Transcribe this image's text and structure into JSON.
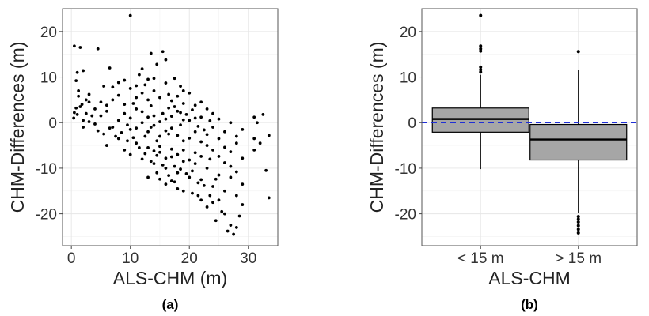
{
  "chart_data": [
    {
      "type": "scatter",
      "caption": "(a)",
      "xlabel": "ALS-CHM (m)",
      "ylabel": "CHM-Differences (m)",
      "xlim": [
        -1.5,
        35
      ],
      "ylim": [
        -27,
        25
      ],
      "xticks": [
        "0",
        "10",
        "20",
        "30"
      ],
      "yticks": [
        "20",
        "10",
        "0",
        "-10",
        "-20"
      ],
      "grid": true,
      "point_color": "#000000",
      "points": [
        [
          0.5,
          16.8
        ],
        [
          1.5,
          16.5
        ],
        [
          4.5,
          16.2
        ],
        [
          10,
          23.5
        ],
        [
          13.5,
          15.2
        ],
        [
          15.5,
          15.6
        ],
        [
          1,
          11
        ],
        [
          2,
          11.4
        ],
        [
          0.8,
          9.2
        ],
        [
          1.2,
          7
        ],
        [
          6.5,
          12
        ],
        [
          11.5,
          10.5
        ],
        [
          12,
          11.8
        ],
        [
          13,
          9.5
        ],
        [
          14.5,
          12.8
        ],
        [
          16,
          13.8
        ],
        [
          17.5,
          9.7
        ],
        [
          8,
          8.8
        ],
        [
          5.5,
          8
        ],
        [
          18.5,
          8
        ],
        [
          0.5,
          2.2
        ],
        [
          1.5,
          3.5
        ],
        [
          2.5,
          2
        ],
        [
          3.5,
          1.5
        ],
        [
          2,
          0.5
        ],
        [
          1,
          1.8
        ],
        [
          3,
          4.5
        ],
        [
          4,
          -0.3
        ],
        [
          5,
          1.5
        ],
        [
          6,
          2.5
        ],
        [
          7,
          -1
        ],
        [
          8,
          0.5
        ],
        [
          9,
          2
        ],
        [
          10,
          -1.5
        ],
        [
          11,
          3
        ],
        [
          12,
          0
        ],
        [
          13,
          -2
        ],
        [
          14,
          1.5
        ],
        [
          15,
          -3
        ],
        [
          16,
          0.8
        ],
        [
          17,
          -1.2
        ],
        [
          18,
          2.5
        ],
        [
          19,
          -4
        ],
        [
          20,
          0.5
        ],
        [
          21,
          -2
        ],
        [
          22,
          1.2
        ],
        [
          23,
          -5
        ],
        [
          24,
          -1
        ],
        [
          25,
          -3.5
        ],
        [
          26,
          -2
        ],
        [
          27,
          0
        ],
        [
          28,
          -4.5
        ],
        [
          29,
          -1.5
        ],
        [
          31,
          1.2
        ],
        [
          31.5,
          0
        ],
        [
          32.5,
          1.8
        ],
        [
          31,
          -3.5
        ],
        [
          32,
          -4.5
        ],
        [
          33.5,
          -2.8
        ],
        [
          31,
          -6
        ],
        [
          6,
          -5
        ],
        [
          8,
          -3.5
        ],
        [
          9,
          -6
        ],
        [
          10,
          -7
        ],
        [
          11,
          -4.5
        ],
        [
          12,
          -8
        ],
        [
          13,
          -5.5
        ],
        [
          14,
          -9
        ],
        [
          15,
          -6.5
        ],
        [
          16,
          -10
        ],
        [
          17,
          -7.5
        ],
        [
          18,
          -11
        ],
        [
          19,
          -8.5
        ],
        [
          20,
          -12
        ],
        [
          21,
          -9
        ],
        [
          22,
          -12.5
        ],
        [
          23,
          -10
        ],
        [
          24,
          -14
        ],
        [
          25,
          -11.5
        ],
        [
          26,
          -15
        ],
        [
          27,
          -12
        ],
        [
          28,
          -16
        ],
        [
          29,
          -13.5
        ],
        [
          33,
          -10.5
        ],
        [
          13,
          -12
        ],
        [
          14.5,
          -11
        ],
        [
          16,
          -13.5
        ],
        [
          17.5,
          -13
        ],
        [
          19,
          -15
        ],
        [
          20.5,
          -15.5
        ],
        [
          22,
          -17
        ],
        [
          23,
          -18.5
        ],
        [
          24.5,
          -21.5
        ],
        [
          25,
          -17
        ],
        [
          26,
          -20
        ],
        [
          27,
          -22.5
        ],
        [
          27.5,
          -24.5
        ],
        [
          28,
          -23
        ],
        [
          28.5,
          -20.5
        ],
        [
          29,
          -18
        ],
        [
          33.5,
          -16.5
        ],
        [
          24,
          -17.5
        ],
        [
          25.5,
          -19.5
        ],
        [
          26.5,
          -23.8
        ],
        [
          23.5,
          -16
        ],
        [
          22.5,
          -13.8
        ],
        [
          12.5,
          -3
        ],
        [
          13.5,
          -1
        ],
        [
          14.5,
          -4
        ],
        [
          15.5,
          2
        ],
        [
          16.5,
          -2.5
        ],
        [
          17.5,
          3.5
        ],
        [
          18.5,
          -0.5
        ],
        [
          19.5,
          1.8
        ],
        [
          14,
          -6.2
        ],
        [
          15,
          -5.2
        ],
        [
          16,
          -7.8
        ],
        [
          17,
          -5.8
        ],
        [
          18,
          -7
        ],
        [
          19,
          -6
        ],
        [
          20,
          -8.2
        ],
        [
          21,
          -6.6
        ],
        [
          22,
          -7.4
        ],
        [
          15,
          5.5
        ],
        [
          16.5,
          6.2
        ],
        [
          17,
          4.8
        ],
        [
          18,
          5.8
        ],
        [
          19,
          4.2
        ],
        [
          20,
          6.5
        ],
        [
          21,
          3.8
        ],
        [
          22,
          4.5
        ],
        [
          23,
          3
        ],
        [
          14,
          7
        ],
        [
          13,
          5
        ],
        [
          12,
          6.5
        ],
        [
          11,
          5.5
        ],
        [
          10,
          7.5
        ],
        [
          9,
          4
        ],
        [
          8,
          6
        ],
        [
          7,
          5
        ],
        [
          6,
          3.8
        ],
        [
          5,
          4.5
        ],
        [
          4,
          3
        ],
        [
          3,
          0.2
        ],
        [
          2,
          -1
        ],
        [
          4.5,
          -1.8
        ],
        [
          5.5,
          -2.5
        ],
        [
          6.5,
          -1.2
        ],
        [
          7.5,
          -3
        ],
        [
          8.5,
          -2.2
        ],
        [
          9.5,
          -4
        ],
        [
          10.5,
          -3.3
        ],
        [
          11.5,
          -5.5
        ],
        [
          12.5,
          -6.8
        ],
        [
          13.5,
          -8.5
        ],
        [
          14.5,
          -7.2
        ],
        [
          15.5,
          -9.3
        ],
        [
          16.5,
          -11.6
        ],
        [
          17.5,
          -9.6
        ],
        [
          18.5,
          -10.2
        ],
        [
          19.5,
          -11.2
        ],
        [
          20.5,
          -10.6
        ],
        [
          21.5,
          -13.2
        ],
        [
          18,
          -14.5
        ],
        [
          10,
          1
        ],
        [
          10.5,
          4.2
        ],
        [
          9.5,
          -0.5
        ],
        [
          11,
          -1.2
        ],
        [
          12,
          2.4
        ],
        [
          13,
          1.2
        ],
        [
          14,
          -0.6
        ],
        [
          15,
          0.2
        ],
        [
          16,
          -1.8
        ],
        [
          17,
          1.4
        ],
        [
          18,
          -2.8
        ],
        [
          19,
          0.6
        ],
        [
          20,
          -3.4
        ],
        [
          21,
          1
        ],
        [
          22,
          -4.2
        ],
        [
          23,
          -2.6
        ],
        [
          24,
          -6
        ],
        [
          25,
          -7.4
        ],
        [
          26,
          -8.8
        ],
        [
          27,
          -9.6
        ],
        [
          28,
          -10.8
        ],
        [
          24,
          2
        ],
        [
          25,
          0.8
        ],
        [
          26,
          -5.4
        ],
        [
          27,
          -6.4
        ],
        [
          28,
          -3
        ],
        [
          29,
          -7.8
        ],
        [
          23.5,
          -8
        ],
        [
          24.5,
          -12.4
        ],
        [
          21.5,
          -16
        ],
        [
          17,
          -12.8
        ],
        [
          15,
          -12.4
        ],
        [
          3,
          6.2
        ],
        [
          2.5,
          5
        ],
        [
          1.8,
          4
        ],
        [
          1.2,
          5.8
        ],
        [
          0.8,
          3.2
        ],
        [
          0.4,
          1
        ],
        [
          7,
          7.8
        ],
        [
          9,
          9.3
        ],
        [
          12.5,
          8.3
        ],
        [
          14,
          9.7
        ],
        [
          16,
          8.7
        ],
        [
          11,
          8.1
        ],
        [
          19,
          7
        ],
        [
          13.5,
          3.7
        ],
        [
          16.5,
          3.2
        ],
        [
          18.5,
          2.2
        ],
        [
          20.5,
          2.8
        ],
        [
          21.5,
          -0.8
        ],
        [
          22.5,
          -1.6
        ],
        [
          23.5,
          0.4
        ]
      ]
    },
    {
      "type": "box",
      "caption": "(b)",
      "xlabel": "ALS-CHM",
      "ylabel": "CHM-Differences (m)",
      "ylim": [
        -27,
        25
      ],
      "yticks": [
        "20",
        "10",
        "0",
        "-10",
        "-20"
      ],
      "categories": [
        "< 15 m",
        "> 15 m"
      ],
      "box_fill": "#a6a6a6",
      "reference_line": {
        "y": 0,
        "color": "#1f2fd6",
        "style": "dashed"
      },
      "boxes": [
        {
          "category": "< 15 m",
          "whisker_low": -10.2,
          "q1": -2.1,
          "median": 0.8,
          "q3": 3.2,
          "whisker_high": 10.5,
          "outliers": [
            23.5,
            16.8,
            16.2,
            15.7,
            12.2,
            11.6,
            11.1
          ]
        },
        {
          "category": "> 15 m",
          "whisker_low": -19.8,
          "q1": -8.2,
          "median": -3.7,
          "q3": -0.4,
          "whisker_high": 11.5,
          "outliers": [
            15.6,
            -20.6,
            -21.2,
            -21.8,
            -22.6,
            -23.4,
            -24.2
          ]
        }
      ]
    }
  ]
}
